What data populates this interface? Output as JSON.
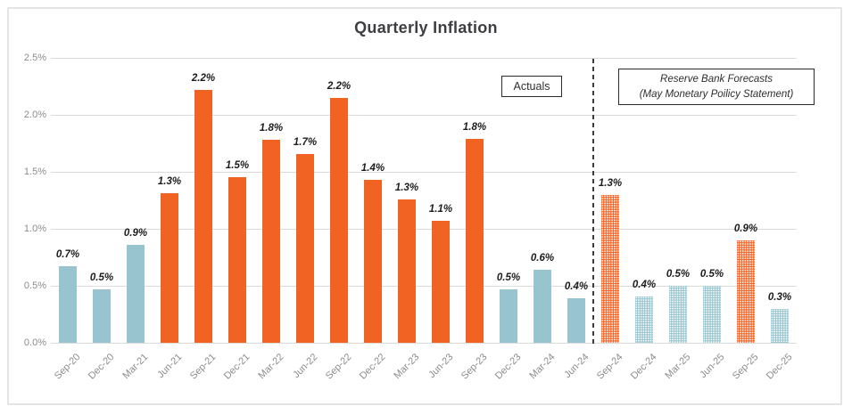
{
  "title": "Quarterly Inflation",
  "annotations": {
    "actuals_label": "Actuals",
    "forecast": {
      "line1": "Reserve Bank Forecasts",
      "line2": "(May Monetary Poilicy Statement)"
    }
  },
  "colors": {
    "bar_orange": "#F16323",
    "bar_blue": "#97C4CF",
    "gridline": "#DBDBDB",
    "axis_text": "#8C8C8C",
    "data_label_text": "#1C1C1C",
    "title_text": "#3E3E42",
    "divider": "#3B3B3B",
    "frame_border": "#E4E4E4"
  },
  "chart_data": {
    "type": "bar",
    "title": "Quarterly Inflation",
    "xlabel": "",
    "ylabel": "",
    "ylim": [
      0,
      2.5
    ],
    "grid": true,
    "legend_position": "none",
    "divider_between": [
      "Jun-24",
      "Sep-24"
    ],
    "sections": [
      "Actuals",
      "Reserve Bank Forecasts (May Monetary Poilicy Statement)"
    ],
    "yticks": [
      {
        "label": "0.0%",
        "value": 0
      },
      {
        "label": "0.5%",
        "value": 0.5
      },
      {
        "label": "1.0%",
        "value": 1.0
      },
      {
        "label": "1.5%",
        "value": 1.5
      },
      {
        "label": "2.0%",
        "value": 2.0
      },
      {
        "label": "2.5%",
        "value": 2.5
      }
    ],
    "categories": [
      "Sep-20",
      "Dec-20",
      "Mar-21",
      "Jun-21",
      "Sep-21",
      "Dec-21",
      "Mar-22",
      "Jun-22",
      "Sep-22",
      "Dec-22",
      "Mar-23",
      "Jun-23",
      "Sep-23",
      "Dec-23",
      "Mar-24",
      "Jun-24",
      "Sep-24",
      "Dec-24",
      "Mar-25",
      "Jun-25",
      "Sep-25",
      "Dec-25"
    ],
    "bars": [
      {
        "category": "Sep-20",
        "label": "0.7%",
        "value": 0.7,
        "bar_height": 0.67,
        "color": "blue",
        "pattern": "solid",
        "section": "actual"
      },
      {
        "category": "Dec-20",
        "label": "0.5%",
        "value": 0.5,
        "bar_height": 0.47,
        "color": "blue",
        "pattern": "solid",
        "section": "actual"
      },
      {
        "category": "Mar-21",
        "label": "0.9%",
        "value": 0.9,
        "bar_height": 0.86,
        "color": "blue",
        "pattern": "solid",
        "section": "actual"
      },
      {
        "category": "Jun-21",
        "label": "1.3%",
        "value": 1.3,
        "bar_height": 1.31,
        "color": "orange",
        "pattern": "solid",
        "section": "actual"
      },
      {
        "category": "Sep-21",
        "label": "2.2%",
        "value": 2.2,
        "bar_height": 2.22,
        "color": "orange",
        "pattern": "solid",
        "section": "actual"
      },
      {
        "category": "Dec-21",
        "label": "1.5%",
        "value": 1.5,
        "bar_height": 1.45,
        "color": "orange",
        "pattern": "solid",
        "section": "actual"
      },
      {
        "category": "Mar-22",
        "label": "1.8%",
        "value": 1.8,
        "bar_height": 1.78,
        "color": "orange",
        "pattern": "solid",
        "section": "actual"
      },
      {
        "category": "Jun-22",
        "label": "1.7%",
        "value": 1.7,
        "bar_height": 1.66,
        "color": "orange",
        "pattern": "solid",
        "section": "actual"
      },
      {
        "category": "Sep-22",
        "label": "2.2%",
        "value": 2.2,
        "bar_height": 2.15,
        "color": "orange",
        "pattern": "solid",
        "section": "actual"
      },
      {
        "category": "Dec-22",
        "label": "1.4%",
        "value": 1.4,
        "bar_height": 1.43,
        "color": "orange",
        "pattern": "solid",
        "section": "actual"
      },
      {
        "category": "Mar-23",
        "label": "1.3%",
        "value": 1.3,
        "bar_height": 1.26,
        "color": "orange",
        "pattern": "solid",
        "section": "actual"
      },
      {
        "category": "Jun-23",
        "label": "1.1%",
        "value": 1.1,
        "bar_height": 1.07,
        "color": "orange",
        "pattern": "solid",
        "section": "actual"
      },
      {
        "category": "Sep-23",
        "label": "1.8%",
        "value": 1.8,
        "bar_height": 1.79,
        "color": "orange",
        "pattern": "solid",
        "section": "actual"
      },
      {
        "category": "Dec-23",
        "label": "0.5%",
        "value": 0.5,
        "bar_height": 0.47,
        "color": "blue",
        "pattern": "solid",
        "section": "actual"
      },
      {
        "category": "Mar-24",
        "label": "0.6%",
        "value": 0.6,
        "bar_height": 0.64,
        "color": "blue",
        "pattern": "solid",
        "section": "actual"
      },
      {
        "category": "Jun-24",
        "label": "0.4%",
        "value": 0.4,
        "bar_height": 0.39,
        "color": "blue",
        "pattern": "solid",
        "section": "actual"
      },
      {
        "category": "Sep-24",
        "label": "1.3%",
        "value": 1.3,
        "bar_height": 1.3,
        "color": "orange",
        "pattern": "dotted",
        "section": "forecast"
      },
      {
        "category": "Dec-24",
        "label": "0.4%",
        "value": 0.4,
        "bar_height": 0.41,
        "color": "blue",
        "pattern": "dotted",
        "section": "forecast"
      },
      {
        "category": "Mar-25",
        "label": "0.5%",
        "value": 0.5,
        "bar_height": 0.5,
        "color": "blue",
        "pattern": "dotted",
        "section": "forecast"
      },
      {
        "category": "Jun-25",
        "label": "0.5%",
        "value": 0.5,
        "bar_height": 0.5,
        "color": "blue",
        "pattern": "dotted",
        "section": "forecast"
      },
      {
        "category": "Sep-25",
        "label": "0.9%",
        "value": 0.9,
        "bar_height": 0.9,
        "color": "orange",
        "pattern": "dotted",
        "section": "forecast"
      },
      {
        "category": "Dec-25",
        "label": "0.3%",
        "value": 0.3,
        "bar_height": 0.3,
        "color": "blue",
        "pattern": "dotted",
        "section": "forecast"
      }
    ]
  }
}
